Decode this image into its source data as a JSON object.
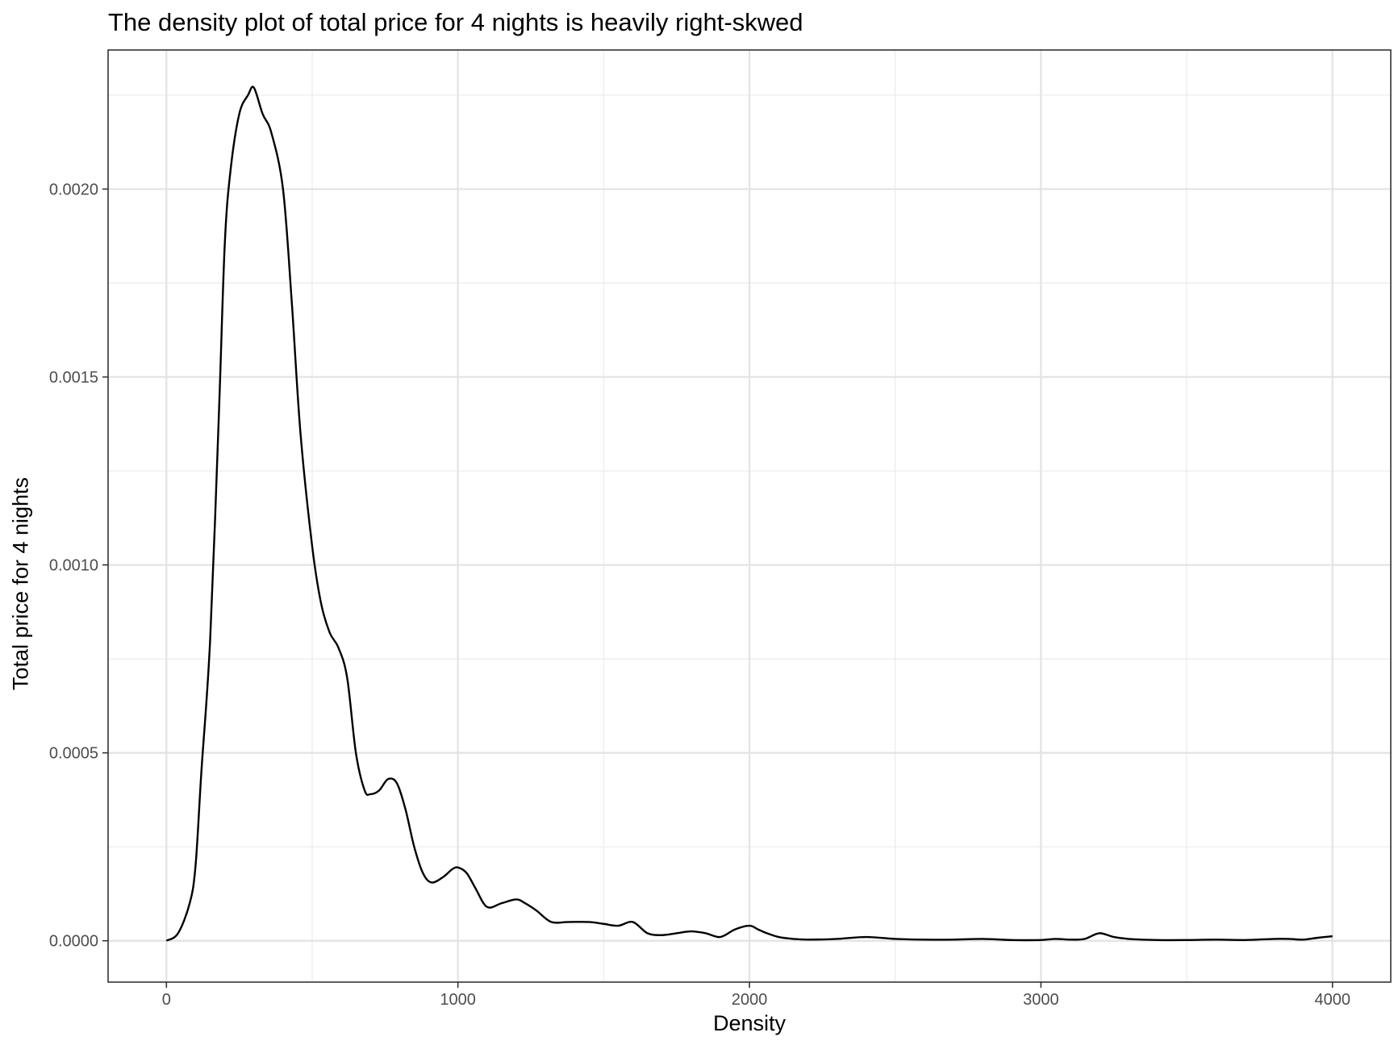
{
  "chart_data": {
    "type": "area",
    "title": "The density plot of total price for 4 nights is heavily right-skwed",
    "xlabel": "Density",
    "ylabel": "Total price for 4 nights",
    "xlim": [
      -200,
      4200
    ],
    "ylim": [
      -0.00011,
      0.00237
    ],
    "x_ticks": [
      0,
      1000,
      2000,
      3000,
      4000
    ],
    "x_tick_labels": [
      "0",
      "1000",
      "2000",
      "3000",
      "4000"
    ],
    "y_ticks": [
      0,
      0.0005,
      0.001,
      0.0015,
      0.002
    ],
    "y_tick_labels": [
      "0.0000",
      "0.0005",
      "0.0010",
      "0.0015",
      "0.0020"
    ],
    "grid": true,
    "line_color": "#000000",
    "series": [
      {
        "x": [
          0,
          40,
          80,
          100,
          120,
          150,
          180,
          200,
          220,
          250,
          280,
          300,
          330,
          360,
          400,
          430,
          460,
          500,
          530,
          560,
          590,
          620,
          650,
          680,
          700,
          730,
          760,
          790,
          820,
          850,
          880,
          910,
          950,
          980,
          1000,
          1030,
          1060,
          1100,
          1150,
          1200,
          1230,
          1270,
          1320,
          1380,
          1450,
          1500,
          1550,
          1600,
          1650,
          1700,
          1750,
          1800,
          1850,
          1900,
          1950,
          2000,
          2030,
          2060,
          2100,
          2150,
          2200,
          2300,
          2400,
          2500,
          2600,
          2700,
          2800,
          2900,
          3000,
          3050,
          3100,
          3150,
          3200,
          3250,
          3300,
          3400,
          3500,
          3600,
          3700,
          3800,
          3850,
          3900,
          3950,
          4000
        ],
        "y": [
          0.0,
          2e-05,
          0.0001,
          0.0002,
          0.00045,
          0.0008,
          0.0014,
          0.00185,
          0.00205,
          0.0022,
          0.00225,
          0.00227,
          0.0022,
          0.00215,
          0.002,
          0.0017,
          0.00135,
          0.00105,
          0.0009,
          0.00082,
          0.00078,
          0.0007,
          0.0005,
          0.0004,
          0.00039,
          0.0004,
          0.00043,
          0.00042,
          0.00035,
          0.00025,
          0.00018,
          0.000155,
          0.00017,
          0.00019,
          0.000195,
          0.00018,
          0.00014,
          9e-05,
          0.0001,
          0.00011,
          0.0001,
          8e-05,
          5e-05,
          5e-05,
          5e-05,
          4.5e-05,
          4e-05,
          5e-05,
          2e-05,
          1.5e-05,
          2e-05,
          2.5e-05,
          2e-05,
          1e-05,
          3e-05,
          4e-05,
          3e-05,
          2e-05,
          1e-05,
          5e-06,
          3e-06,
          5e-06,
          1e-05,
          5e-06,
          3e-06,
          3e-06,
          5e-06,
          2e-06,
          2e-06,
          5e-06,
          3e-06,
          5e-06,
          2e-05,
          1e-05,
          5e-06,
          2e-06,
          2e-06,
          3e-06,
          2e-06,
          5e-06,
          5e-06,
          3e-06,
          8e-06,
          1.2e-05
        ]
      }
    ]
  }
}
